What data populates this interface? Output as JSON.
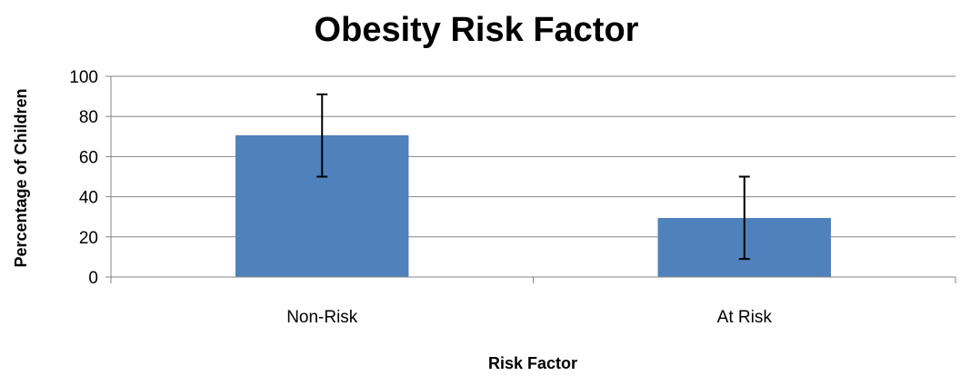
{
  "chart_data": {
    "type": "bar",
    "title": "Obesity Risk Factor",
    "xlabel": "Risk Factor",
    "ylabel": "Percentage of Children",
    "categories": [
      "Non-Risk",
      "At Risk"
    ],
    "values": [
      70.6,
      29.4
    ],
    "error_bars": [
      {
        "low": 50,
        "high": 91
      },
      {
        "low": 9,
        "high": 50
      }
    ],
    "ylim": [
      0,
      100
    ],
    "yticks": [
      "0",
      "20",
      "40",
      "60",
      "80",
      "100"
    ],
    "ytick_values": [
      0,
      20,
      40,
      60,
      80,
      100
    ],
    "grid": true,
    "legend": false,
    "bar_color": "#4f81bd"
  }
}
